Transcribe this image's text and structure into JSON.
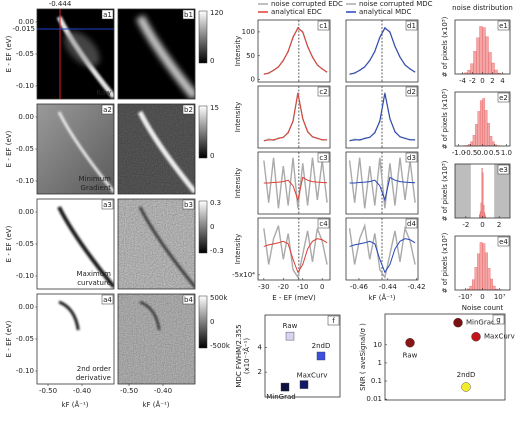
{
  "images": {
    "y_label": "E - EF (eV)",
    "x_label": "kF (Å⁻¹)",
    "xticks": [
      "-0.50",
      "-0.40"
    ],
    "yticks": [
      "0.00",
      "-0.05",
      "-0.10"
    ],
    "cut_k": "-0.444",
    "cut_E": "-0.015",
    "rows": [
      {
        "a_label": "a1",
        "b_label": "b1",
        "caption": [
          "Raw"
        ],
        "colorbar": [
          "120",
          "0"
        ]
      },
      {
        "a_label": "a2",
        "b_label": "b2",
        "caption": [
          "Minimum",
          "Gradient"
        ],
        "colorbar": [
          "15",
          "0"
        ]
      },
      {
        "a_label": "a3",
        "b_label": "b3",
        "caption": [
          "Maximum",
          "curvature"
        ],
        "colorbar": [
          "0.3",
          "0",
          "-0.3"
        ]
      },
      {
        "a_label": "a4",
        "b_label": "b4",
        "caption": [
          "2nd order",
          "derivative"
        ],
        "colorbar": [
          "500k",
          "0",
          "-500k"
        ]
      }
    ]
  },
  "chart_data": [
    {
      "type": "line",
      "label": "c1",
      "y_label": "Intensity",
      "x": [
        -30,
        -27.5,
        -25,
        -22.5,
        -20,
        -17.5,
        -15,
        -12.5,
        -10,
        -7.5,
        -5,
        -2.5,
        0,
        2.5
      ],
      "xlim": [
        -33,
        4
      ],
      "ylim": [
        -5,
        125
      ],
      "yticks": [
        0,
        50,
        100
      ],
      "vline": -12,
      "series": [
        {
          "name": "noise corrupted EDC",
          "color": "#aaaaaa",
          "values": [
            12,
            13,
            20,
            26,
            41,
            58,
            90,
            107,
            101,
            69,
            48,
            30,
            23,
            15
          ]
        },
        {
          "name": "analytical EDC",
          "color": "#e03c31",
          "values": [
            11,
            14.3,
            19.3,
            27.1,
            39.6,
            59.8,
            88,
            109,
            99,
            70.4,
            46.6,
            31.3,
            22,
            16.1
          ]
        }
      ]
    },
    {
      "type": "line",
      "label": "c2",
      "y_label": "Intensity",
      "x": [
        -30,
        -27.5,
        -25,
        -22.5,
        -20,
        -17.5,
        -15,
        -12.5,
        -10,
        -7.5,
        -5,
        -2.5,
        0,
        2.5
      ],
      "xlim": [
        -33,
        4
      ],
      "ylim": [
        -0.1,
        1.15
      ],
      "vline": -12,
      "series": [
        {
          "color": "#aaaaaa",
          "values": [
            0.04,
            0.08,
            0.05,
            0.1,
            0.11,
            0.22,
            0.43,
            1.02,
            0.48,
            0.24,
            0.12,
            0.1,
            0.06,
            0.07
          ]
        },
        {
          "color": "#e03c31",
          "values": [
            0.05,
            0.06,
            0.07,
            0.09,
            0.12,
            0.2,
            0.45,
            1.0,
            0.5,
            0.22,
            0.13,
            0.09,
            0.07,
            0.06
          ]
        }
      ]
    },
    {
      "type": "line",
      "label": "c3",
      "y_label": "Intensity",
      "x": [
        -30,
        -27.5,
        -25,
        -22.5,
        -20,
        -17.5,
        -15,
        -12.5,
        -10,
        -7.5,
        -5,
        -2.5,
        0,
        2.5
      ],
      "xlim": [
        -33,
        4
      ],
      "ylim": [
        -1.1,
        1.1
      ],
      "vline": -12,
      "series": [
        {
          "color": "#aaaaaa",
          "values": [
            0.8,
            -0.7,
            0.9,
            -0.9,
            0.6,
            -0.8,
            0.9,
            -0.9,
            0.7,
            -0.8,
            0.9,
            -0.6,
            0.8,
            -0.7
          ]
        },
        {
          "color": "#e03c31",
          "values": [
            0,
            0,
            0.02,
            0.03,
            0.05,
            0.1,
            -0.1,
            -0.6,
            0.2,
            0.1,
            0.05,
            0.03,
            0.02,
            0.01
          ]
        }
      ]
    },
    {
      "type": "line",
      "label": "c4",
      "y_label": "Intensity",
      "x_label": "E - EF (meV)",
      "x": [
        -30,
        -27.5,
        -25,
        -22.5,
        -20,
        -17.5,
        -15,
        -12.5,
        -10,
        -7.5,
        -5,
        -2.5,
        0,
        2.5
      ],
      "xlim": [
        -33,
        4
      ],
      "xticks": [
        -30,
        -20,
        -10,
        0
      ],
      "ylim": [
        -60000,
        60000
      ],
      "yticks": [
        {
          "value": -50000,
          "label": "-5x10⁴"
        }
      ],
      "vline": -12,
      "series": [
        {
          "color": "#aaaaaa",
          "values": [
            40000,
            -30000,
            20000,
            45000,
            -20000,
            30000,
            -40000,
            -55000,
            -10000,
            35000,
            -25000,
            40000,
            15000,
            -30000
          ]
        },
        {
          "color": "#e03c31",
          "values": [
            5000,
            8000,
            10000,
            12000,
            15000,
            10000,
            -20000,
            -45000,
            -30000,
            0,
            15000,
            20000,
            18000,
            12000
          ]
        }
      ]
    },
    {
      "type": "line",
      "label": "d1",
      "x": [
        -0.4665,
        -0.463,
        -0.4595,
        -0.456,
        -0.4525,
        -0.449,
        -0.4455,
        -0.442,
        -0.4385,
        -0.435,
        -0.4315,
        -0.428,
        -0.4245,
        -0.421
      ],
      "xlim": [
        -0.469,
        -0.419
      ],
      "ylim": [
        -5,
        125
      ],
      "vline": -0.444,
      "series": [
        {
          "name": "noise corrupted MDC",
          "color": "#aaaaaa",
          "values": [
            12,
            13,
            20,
            26,
            41,
            58,
            90,
            107,
            101,
            69,
            48,
            30,
            23,
            15
          ]
        },
        {
          "name": "analytical MDC",
          "color": "#2646b8",
          "values": [
            11,
            14.3,
            19.3,
            27.1,
            39.6,
            59.8,
            88,
            109,
            99,
            70.4,
            46.6,
            31.3,
            22,
            16.1
          ]
        }
      ]
    },
    {
      "type": "line",
      "label": "d2",
      "x": [
        -0.4665,
        -0.463,
        -0.4595,
        -0.456,
        -0.4525,
        -0.449,
        -0.4455,
        -0.442,
        -0.4385,
        -0.435,
        -0.4315,
        -0.428,
        -0.4245,
        -0.421
      ],
      "xlim": [
        -0.469,
        -0.419
      ],
      "ylim": [
        -0.1,
        1.15
      ],
      "vline": -0.444,
      "series": [
        {
          "color": "#aaaaaa",
          "values": [
            0.04,
            0.08,
            0.05,
            0.1,
            0.11,
            0.22,
            0.43,
            1.02,
            0.48,
            0.24,
            0.12,
            0.1,
            0.06,
            0.07
          ]
        },
        {
          "color": "#2646b8",
          "values": [
            0.05,
            0.06,
            0.07,
            0.09,
            0.12,
            0.2,
            0.45,
            1.0,
            0.5,
            0.22,
            0.13,
            0.09,
            0.07,
            0.06
          ]
        }
      ]
    },
    {
      "type": "line",
      "label": "d3",
      "x": [
        -0.4665,
        -0.463,
        -0.4595,
        -0.456,
        -0.4525,
        -0.449,
        -0.4455,
        -0.442,
        -0.4385,
        -0.435,
        -0.4315,
        -0.428,
        -0.4245,
        -0.421
      ],
      "xlim": [
        -0.469,
        -0.419
      ],
      "ylim": [
        -1.1,
        1.1
      ],
      "vline": -0.444,
      "series": [
        {
          "color": "#aaaaaa",
          "values": [
            0.8,
            -0.7,
            0.9,
            -0.9,
            0.6,
            -0.8,
            0.9,
            -0.9,
            0.7,
            -0.8,
            0.9,
            -0.6,
            0.8,
            -0.7
          ]
        },
        {
          "color": "#2646b8",
          "values": [
            0,
            0,
            0.02,
            0.03,
            0.05,
            0.1,
            -0.1,
            -0.6,
            0.2,
            0.1,
            0.05,
            0.03,
            0.02,
            0.01
          ]
        }
      ]
    },
    {
      "type": "line",
      "label": "d4",
      "x_label": "kF (Å⁻¹)",
      "x": [
        -0.4665,
        -0.463,
        -0.4595,
        -0.456,
        -0.4525,
        -0.449,
        -0.4455,
        -0.442,
        -0.4385,
        -0.435,
        -0.4315,
        -0.428,
        -0.4245,
        -0.421
      ],
      "xlim": [
        -0.469,
        -0.419
      ],
      "xticks": [
        -0.46,
        -0.44,
        -0.42
      ],
      "ylim": [
        -60000,
        60000
      ],
      "vline": -0.444,
      "series": [
        {
          "color": "#aaaaaa",
          "values": [
            40000,
            -30000,
            20000,
            45000,
            -20000,
            30000,
            -40000,
            -55000,
            -10000,
            35000,
            -25000,
            40000,
            15000,
            -30000
          ]
        },
        {
          "color": "#2646b8",
          "values": [
            5000,
            8000,
            10000,
            12000,
            15000,
            10000,
            -20000,
            -45000,
            -30000,
            0,
            15000,
            20000,
            18000,
            12000
          ]
        }
      ]
    },
    {
      "type": "histogram",
      "label": "e1",
      "title": "noise distribution",
      "y_label": "# of pixels (x10³)",
      "color": "#f4a6a6",
      "edge": "#e05050",
      "bins": [
        -4.8,
        -4.2,
        -3.6,
        -3,
        -2.4,
        -1.8,
        -1.2,
        -0.6,
        0,
        0.6,
        1.2,
        1.8,
        2.4,
        3,
        3.6,
        4.2,
        4.8
      ],
      "values": [
        0.1,
        0.3,
        1.1,
        3.5,
        9.6,
        21,
        33.5,
        44,
        43,
        34.5,
        20,
        10.2,
        3.7,
        0.9,
        0.3,
        0.1
      ],
      "xlim": [
        -5.5,
        5.5
      ],
      "xticks": [
        -4,
        -2,
        0,
        2,
        4
      ],
      "ylim": [
        0,
        50
      ]
    },
    {
      "type": "histogram",
      "label": "e2",
      "y_label": "# of pixels (x10³)",
      "color": "#f4a6a6",
      "edge": "#e05050",
      "bins": [
        -0.8,
        -0.7,
        -0.6,
        -0.5,
        -0.4,
        -0.3,
        -0.2,
        -0.1,
        0,
        0.1,
        0.2,
        0.3,
        0.4,
        0.5,
        0.6,
        0.7,
        0.8
      ],
      "values": [
        0.2,
        0.5,
        1.5,
        4,
        10,
        20,
        32,
        42,
        44,
        33,
        21,
        9,
        4,
        1.2,
        0.4,
        0.1
      ],
      "xlim": [
        -1.15,
        1.15
      ],
      "xticks": [
        {
          "value": -1,
          "label": "-1.0"
        },
        -0.5,
        {
          "value": 0,
          "label": "0.0"
        },
        0.5,
        {
          "value": 1,
          "label": "1.0"
        }
      ],
      "ylim": [
        0,
        50
      ]
    },
    {
      "type": "histogram",
      "label": "e3",
      "y_label": "# of pixels (x10³)",
      "color": "#f4a6a6",
      "edge": "#e05050",
      "bins": [
        -0.4,
        -0.3,
        -0.2,
        -0.1,
        0,
        0.1,
        0.2,
        0.3,
        0.4
      ],
      "values": [
        3,
        6,
        14,
        46,
        42,
        12,
        5,
        2
      ],
      "xlim": [
        -3.3,
        3.3
      ],
      "xticks": [
        -2,
        0,
        2
      ],
      "ylim": [
        0,
        50
      ],
      "shaded_ranges": [
        [
          -3.3,
          -1.4
        ],
        [
          1.4,
          3.3
        ]
      ]
    },
    {
      "type": "histogram",
      "label": "e4",
      "y_label": "# of pixels (x10³)",
      "x_label": "Noise count",
      "color": "#f4a6a6",
      "edge": "#e05050",
      "bins": [
        -12000000,
        -10500000,
        -9000000,
        -7500000,
        -6000000,
        -4500000,
        -3000000,
        -1500000,
        0,
        1500000,
        3000000,
        4500000,
        6000000,
        7500000,
        9000000,
        10500000,
        12000000
      ],
      "values": [
        0.1,
        0.3,
        1.1,
        3.5,
        9.6,
        21,
        33.5,
        44,
        43,
        34.5,
        20,
        10.2,
        3.7,
        0.9,
        0.3,
        0.1
      ],
      "xlim": [
        -16000000,
        16000000
      ],
      "xticks": [
        {
          "value": -10000000,
          "label": "-10⁷"
        },
        0,
        {
          "value": 10000000,
          "label": "10⁷"
        }
      ],
      "ylim": [
        0,
        50
      ]
    },
    {
      "type": "scatter",
      "label": "f",
      "marker": "square",
      "y_label": [
        "MDC FWHM/2.355",
        "(x10⁻³Å⁻¹)"
      ],
      "categories": [
        "Raw",
        "MinGrad",
        "MaxCurv",
        "2ndD"
      ],
      "values": [
        4.9,
        0.8,
        1.0,
        3.3
      ],
      "colors": [
        "#d8d4f0",
        "#0d1140",
        "#111a66",
        "#3b4fe0"
      ],
      "ylim": [
        0,
        6.6
      ],
      "yticks": [
        2,
        4
      ]
    },
    {
      "type": "scatter",
      "label": "g",
      "marker": "circle",
      "log": true,
      "y_label": [
        "SNR ( aveSignal/σ )"
      ],
      "categories": [
        "MinGrad",
        "MaxCurv",
        "Raw",
        "2ndD"
      ],
      "values": [
        166,
        28,
        13,
        0.047
      ],
      "colors": [
        "#7a1010",
        "#c0161b",
        "#8a1515",
        "#f3ec2a"
      ],
      "ylim": [
        0.009,
        500
      ],
      "yticks": [
        10,
        1,
        0.1,
        0.01
      ]
    }
  ]
}
